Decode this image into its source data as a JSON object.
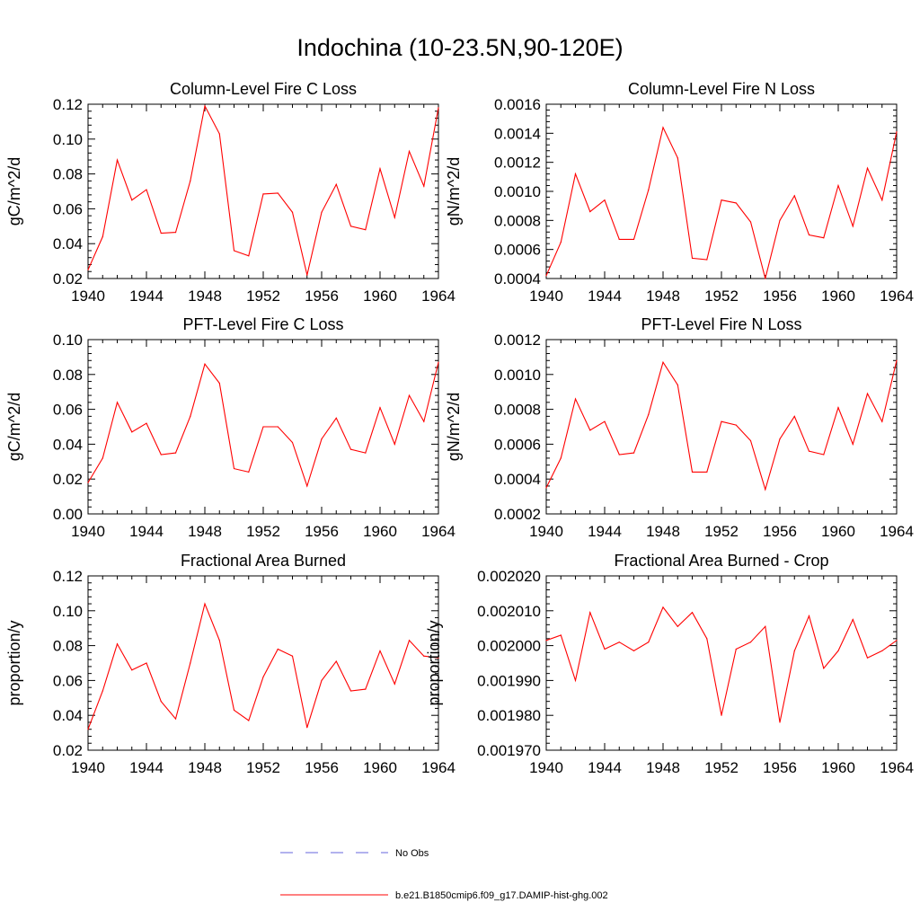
{
  "title": "Indochina (10-23.5N,90-120E)",
  "chart_data": [
    {
      "type": "line",
      "title": "Column-Level Fire C Loss",
      "ylabel": "gC/m^2/d",
      "xlim": [
        1940,
        1964
      ],
      "ylim": [
        0.02,
        0.12
      ],
      "xticks": [
        "1940",
        "1944",
        "1948",
        "1952",
        "1956",
        "1960",
        "1964"
      ],
      "yticks": [
        "0.02",
        "0.04",
        "0.06",
        "0.08",
        "0.10",
        "0.12"
      ],
      "x": [
        1940,
        1941,
        1942,
        1943,
        1944,
        1945,
        1946,
        1947,
        1948,
        1949,
        1950,
        1951,
        1952,
        1953,
        1954,
        1955,
        1956,
        1957,
        1958,
        1959,
        1960,
        1961,
        1962,
        1963,
        1964
      ],
      "series": [
        {
          "name": "b.e21.B1850cmip6.f09_g17.DAMIP-hist-ghg.002",
          "color": "#ff0000",
          "values": [
            0.025,
            0.044,
            0.088,
            0.065,
            0.071,
            0.046,
            0.0465,
            0.076,
            0.119,
            0.103,
            0.036,
            0.033,
            0.0685,
            0.069,
            0.058,
            0.022,
            0.058,
            0.074,
            0.05,
            0.048,
            0.083,
            0.055,
            0.093,
            0.073,
            0.118
          ]
        }
      ]
    },
    {
      "type": "line",
      "title": "Column-Level Fire N Loss",
      "ylabel": "gN/m^2/d",
      "xlim": [
        1940,
        1964
      ],
      "ylim": [
        0.0004,
        0.0016
      ],
      "xticks": [
        "1940",
        "1944",
        "1948",
        "1952",
        "1956",
        "1960",
        "1964"
      ],
      "yticks": [
        "0.0004",
        "0.0006",
        "0.0008",
        "0.0010",
        "0.0012",
        "0.0014",
        "0.0016"
      ],
      "x": [
        1940,
        1941,
        1942,
        1943,
        1944,
        1945,
        1946,
        1947,
        1948,
        1949,
        1950,
        1951,
        1952,
        1953,
        1954,
        1955,
        1956,
        1957,
        1958,
        1959,
        1960,
        1961,
        1962,
        1963,
        1964
      ],
      "series": [
        {
          "name": "b.e21.B1850cmip6.f09_g17.DAMIP-hist-ghg.002",
          "color": "#ff0000",
          "values": [
            0.00042,
            0.00065,
            0.00112,
            0.00086,
            0.00094,
            0.00067,
            0.00067,
            0.00101,
            0.00144,
            0.00123,
            0.00054,
            0.00053,
            0.00094,
            0.00092,
            0.00079,
            0.0004,
            0.0008,
            0.00097,
            0.0007,
            0.00068,
            0.00104,
            0.00076,
            0.00116,
            0.00094,
            0.00141
          ]
        }
      ]
    },
    {
      "type": "line",
      "title": "PFT-Level Fire C Loss",
      "ylabel": "gC/m^2/d",
      "xlim": [
        1940,
        1964
      ],
      "ylim": [
        0.0,
        0.1
      ],
      "xticks": [
        "1940",
        "1944",
        "1948",
        "1952",
        "1956",
        "1960",
        "1964"
      ],
      "yticks": [
        "0.00",
        "0.02",
        "0.04",
        "0.06",
        "0.08",
        "0.10"
      ],
      "x": [
        1940,
        1941,
        1942,
        1943,
        1944,
        1945,
        1946,
        1947,
        1948,
        1949,
        1950,
        1951,
        1952,
        1953,
        1954,
        1955,
        1956,
        1957,
        1958,
        1959,
        1960,
        1961,
        1962,
        1963,
        1964
      ],
      "series": [
        {
          "name": "b.e21.B1850cmip6.f09_g17.DAMIP-hist-ghg.002",
          "color": "#ff0000",
          "values": [
            0.018,
            0.032,
            0.064,
            0.047,
            0.052,
            0.034,
            0.035,
            0.056,
            0.086,
            0.075,
            0.026,
            0.024,
            0.05,
            0.05,
            0.041,
            0.016,
            0.043,
            0.055,
            0.037,
            0.035,
            0.061,
            0.04,
            0.068,
            0.053,
            0.087
          ]
        }
      ]
    },
    {
      "type": "line",
      "title": "PFT-Level Fire N Loss",
      "ylabel": "gN/m^2/d",
      "xlim": [
        1940,
        1964
      ],
      "ylim": [
        0.0002,
        0.0012
      ],
      "xticks": [
        "1940",
        "1944",
        "1948",
        "1952",
        "1956",
        "1960",
        "1964"
      ],
      "yticks": [
        "0.0002",
        "0.0004",
        "0.0006",
        "0.0008",
        "0.0010",
        "0.0012"
      ],
      "x": [
        1940,
        1941,
        1942,
        1943,
        1944,
        1945,
        1946,
        1947,
        1948,
        1949,
        1950,
        1951,
        1952,
        1953,
        1954,
        1955,
        1956,
        1957,
        1958,
        1959,
        1960,
        1961,
        1962,
        1963,
        1964
      ],
      "series": [
        {
          "name": "b.e21.B1850cmip6.f09_g17.DAMIP-hist-ghg.002",
          "color": "#ff0000",
          "values": [
            0.00035,
            0.00052,
            0.00086,
            0.00068,
            0.00073,
            0.00054,
            0.00055,
            0.00077,
            0.00107,
            0.00094,
            0.00044,
            0.00044,
            0.00073,
            0.00071,
            0.00062,
            0.00034,
            0.00063,
            0.00076,
            0.00056,
            0.00054,
            0.00081,
            0.0006,
            0.00089,
            0.00073,
            0.00108
          ]
        }
      ]
    },
    {
      "type": "line",
      "title": "Fractional Area Burned",
      "ylabel": "proportion/y",
      "xlim": [
        1940,
        1964
      ],
      "ylim": [
        0.02,
        0.12
      ],
      "xticks": [
        "1940",
        "1944",
        "1948",
        "1952",
        "1956",
        "1960",
        "1964"
      ],
      "yticks": [
        "0.02",
        "0.04",
        "0.06",
        "0.08",
        "0.10",
        "0.12"
      ],
      "x": [
        1940,
        1941,
        1942,
        1943,
        1944,
        1945,
        1946,
        1947,
        1948,
        1949,
        1950,
        1951,
        1952,
        1953,
        1954,
        1955,
        1956,
        1957,
        1958,
        1959,
        1960,
        1961,
        1962,
        1963,
        1964
      ],
      "series": [
        {
          "name": "b.e21.B1850cmip6.f09_g17.DAMIP-hist-ghg.002",
          "color": "#ff0000",
          "values": [
            0.032,
            0.054,
            0.081,
            0.066,
            0.07,
            0.048,
            0.038,
            0.07,
            0.104,
            0.083,
            0.043,
            0.037,
            0.062,
            0.078,
            0.074,
            0.033,
            0.06,
            0.071,
            0.054,
            0.055,
            0.077,
            0.058,
            0.083,
            0.074,
            0.073
          ]
        }
      ]
    },
    {
      "type": "line",
      "title": "Fractional Area Burned - Crop",
      "ylabel": "proportion/y",
      "xlim": [
        1940,
        1964
      ],
      "ylim": [
        0.00197,
        0.00202
      ],
      "xticks": [
        "1940",
        "1944",
        "1948",
        "1952",
        "1956",
        "1960",
        "1964"
      ],
      "yticks": [
        "0.001970",
        "0.001980",
        "0.001990",
        "0.002000",
        "0.002010",
        "0.002020"
      ],
      "x": [
        1940,
        1941,
        1942,
        1943,
        1944,
        1945,
        1946,
        1947,
        1948,
        1949,
        1950,
        1951,
        1952,
        1953,
        1954,
        1955,
        1956,
        1957,
        1958,
        1959,
        1960,
        1961,
        1962,
        1963,
        1964
      ],
      "series": [
        {
          "name": "b.e21.B1850cmip6.f09_g17.DAMIP-hist-ghg.002",
          "color": "#ff0000",
          "values": [
            0.0020015,
            0.002003,
            0.00199,
            0.0020095,
            0.001999,
            0.002001,
            0.0019985,
            0.002001,
            0.002011,
            0.0020055,
            0.0020095,
            0.002002,
            0.00198,
            0.001999,
            0.002001,
            0.0020055,
            0.001978,
            0.0019985,
            0.0020085,
            0.0019935,
            0.0019985,
            0.0020075,
            0.0019965,
            0.0019985,
            0.0020015
          ]
        }
      ]
    }
  ],
  "legend": [
    {
      "label": "No Obs",
      "color": "#6666dd",
      "style": "dashed"
    },
    {
      "label": "b.e21.B1850cmip6.f09_g17.DAMIP-hist-ghg.002",
      "color": "#ff0000",
      "style": "solid"
    }
  ]
}
